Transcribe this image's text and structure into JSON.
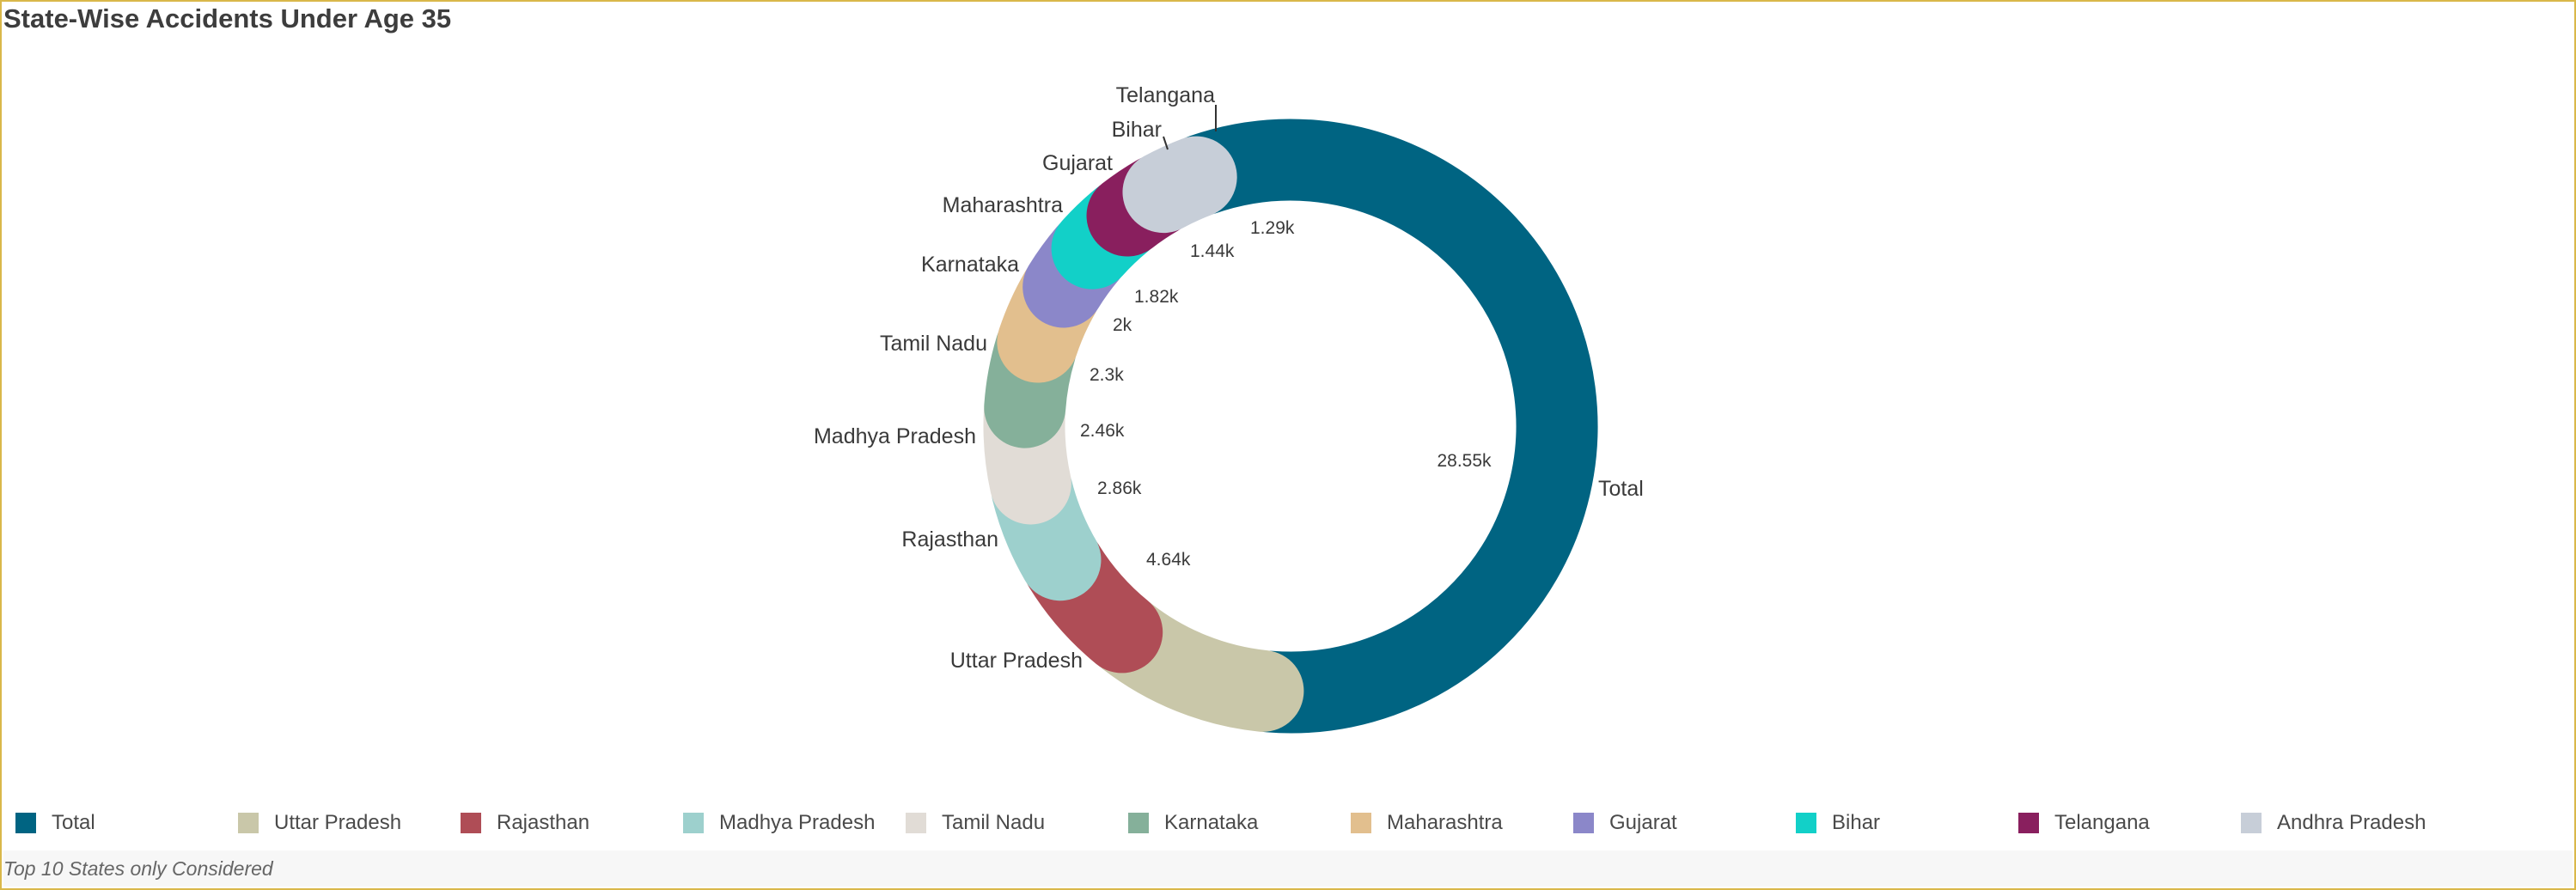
{
  "chart_data": {
    "type": "pie",
    "title": "State-Wise Accidents Under Age 35",
    "note": "Top 10 States only Considered",
    "slices": [
      {
        "name": "Total",
        "value": 28550,
        "label": "28.55k",
        "color": "#006482"
      },
      {
        "name": "Uttar Pradesh",
        "value": 4640,
        "label": "4.64k",
        "color": "#c9c7a9"
      },
      {
        "name": "Rajasthan",
        "value": 2860,
        "label": "2.86k",
        "color": "#af4d56"
      },
      {
        "name": "Madhya Pradesh",
        "value": 2460,
        "label": "2.46k",
        "color": "#9dd0cd"
      },
      {
        "name": "Tamil Nadu",
        "value": 2300,
        "label": "2.3k",
        "color": "#e1dcd6"
      },
      {
        "name": "Karnataka",
        "value": 2000,
        "label": "2k",
        "color": "#85b09a"
      },
      {
        "name": "Maharashtra",
        "value": 1820,
        "label": "1.82k",
        "color": "#e2bf8e"
      },
      {
        "name": "Gujarat",
        "value": 1440,
        "label": "1.44k",
        "color": "#8b87c9"
      },
      {
        "name": "Bihar",
        "value": 1440,
        "label": "",
        "color": "#12d0c8"
      },
      {
        "name": "Telangana",
        "value": 1290,
        "label": "1.29k",
        "color": "#891f5e"
      },
      {
        "name": "Andhra Pradesh",
        "value": 1290,
        "label": "",
        "color": "#c7ced8"
      }
    ],
    "legend_position": "bottom",
    "show_legend": true
  }
}
